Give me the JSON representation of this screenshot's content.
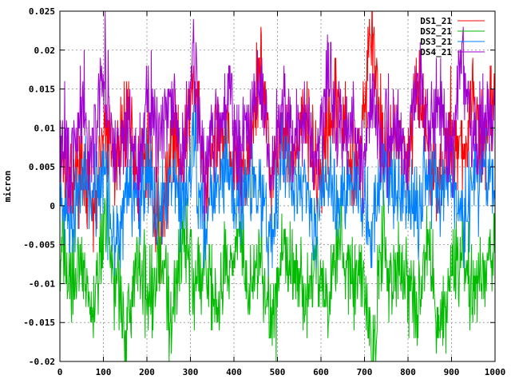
{
  "chart_data": {
    "type": "line",
    "title": "",
    "xlabel": "",
    "ylabel": "micron",
    "xlim": [
      0,
      1000
    ],
    "ylim": [
      -0.02,
      0.025
    ],
    "x_ticks": [
      0,
      100,
      200,
      300,
      400,
      500,
      600,
      700,
      800,
      900,
      1000
    ],
    "x_tick_labels": [
      "0",
      "100",
      "200",
      "300",
      "400",
      "500",
      "600",
      "700",
      "800",
      "900",
      "1000"
    ],
    "y_ticks": [
      -0.02,
      -0.015,
      -0.01,
      -0.005,
      0,
      0.005,
      0.01,
      0.015,
      0.02,
      0.025
    ],
    "y_tick_labels": [
      "-0.02",
      "-0.015",
      "-0.01",
      "-0.005",
      "0",
      "0.005",
      "0.01",
      "0.015",
      "0.02",
      "0.025"
    ],
    "grid": true,
    "legend_position": "top-right",
    "quantization_step": 0.001,
    "series": [
      {
        "name": "DS1_21",
        "color": "#ff0000",
        "values": [
          0.008,
          0.003,
          0.006,
          -0.002,
          0.01,
          0.005,
          0.013,
          0.004,
          0.007,
          -0.005,
          0.009,
          0.006,
          0.016,
          0.003,
          0.008,
          0.011,
          0.002,
          0.007,
          0.018,
          0.004,
          0.01,
          0.006,
          0.012,
          0.003,
          0.008,
          0.014,
          0.005,
          0.009,
          0.023,
          0.006,
          0.011,
          0.004,
          0.017,
          0.008,
          0.002,
          0.01,
          0.006,
          0.013,
          0.007,
          0.015
        ]
      },
      {
        "name": "DS2_21",
        "color": "#00bb00",
        "values": [
          -0.004,
          -0.011,
          -0.006,
          -0.014,
          -0.002,
          -0.009,
          -0.017,
          -0.005,
          -0.012,
          -0.007,
          -0.015,
          -0.003,
          -0.01,
          -0.006,
          -0.013,
          -0.008,
          -0.004,
          -0.011,
          -0.007,
          -0.016,
          -0.005,
          -0.009,
          -0.012,
          -0.006,
          -0.014,
          -0.003,
          -0.01,
          -0.008,
          -0.019,
          -0.005,
          -0.011,
          -0.007,
          -0.013,
          -0.004,
          -0.017,
          -0.009,
          -0.006,
          -0.012,
          -0.008,
          -0.005
        ]
      },
      {
        "name": "DS3_21",
        "color": "#0080ff",
        "values": [
          0.002,
          -0.003,
          0.005,
          0.0,
          0.004,
          -0.006,
          0.003,
          0.001,
          0.006,
          -0.002,
          0.004,
          0.0,
          0.007,
          -0.003,
          0.003,
          0.005,
          -0.001,
          0.004,
          0.002,
          -0.004,
          0.006,
          0.001,
          0.003,
          -0.002,
          0.005,
          0.0,
          0.004,
          0.002,
          -0.003,
          0.006,
          0.001,
          0.003,
          -0.001,
          0.005,
          0.002,
          0.004,
          -0.002,
          0.003,
          0.006,
          0.001
        ]
      },
      {
        "name": "DS4_21",
        "color": "#a000d0",
        "values": [
          0.01,
          0.004,
          0.013,
          0.007,
          0.018,
          0.005,
          0.011,
          0.003,
          0.015,
          0.008,
          0.012,
          0.006,
          0.019,
          0.004,
          0.01,
          0.014,
          0.007,
          0.011,
          0.016,
          0.005,
          0.013,
          0.008,
          0.012,
          0.004,
          0.017,
          0.009,
          0.011,
          0.006,
          0.014,
          0.007,
          0.012,
          0.005,
          0.016,
          0.009,
          0.013,
          0.006,
          0.02,
          0.008,
          0.011,
          0.013
        ]
      }
    ]
  }
}
